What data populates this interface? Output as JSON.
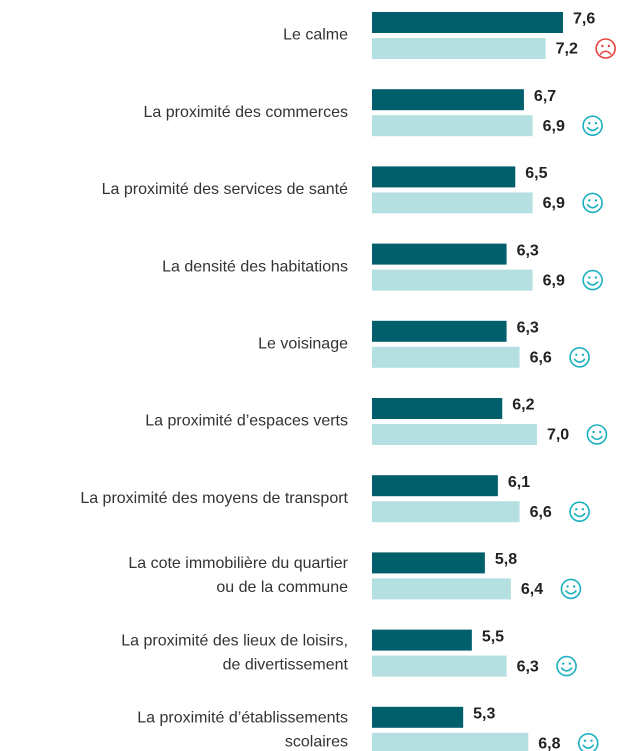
{
  "chart_data": {
    "type": "bar",
    "orientation": "horizontal",
    "categories": [
      [
        "Le calme"
      ],
      [
        "La proximité des commerces"
      ],
      [
        "La proximité des services de santé"
      ],
      [
        "La densité des habitations"
      ],
      [
        "Le voisinage"
      ],
      [
        "La proximité d’espaces verts"
      ],
      [
        "La proximité des moyens de transport"
      ],
      [
        "La cote immobilière du quartier",
        "ou de la commune"
      ],
      [
        "La proximité des lieux de loisirs,",
        "de divertissement"
      ],
      [
        "La proximité d’établissements",
        "scolaires"
      ]
    ],
    "series": [
      {
        "color": "#005f6b",
        "values": [
          7.6,
          6.7,
          6.5,
          6.3,
          6.3,
          6.2,
          6.1,
          5.8,
          5.5,
          5.3
        ],
        "value_labels": [
          "7,6",
          "6,7",
          "6,5",
          "6,3",
          "6,3",
          "6,2",
          "6,1",
          "5,8",
          "5,5",
          "5,3"
        ]
      },
      {
        "color": "#b5e0e2",
        "values": [
          7.2,
          6.9,
          6.9,
          6.9,
          6.6,
          7.0,
          6.6,
          6.4,
          6.3,
          6.8
        ],
        "value_labels": [
          "7,2",
          "6,9",
          "6,9",
          "6,9",
          "6,6",
          "7,0",
          "6,6",
          "6,4",
          "6,3",
          "6,8"
        ]
      }
    ],
    "xlim": [
      3.2,
      7.6
    ]
  }
}
